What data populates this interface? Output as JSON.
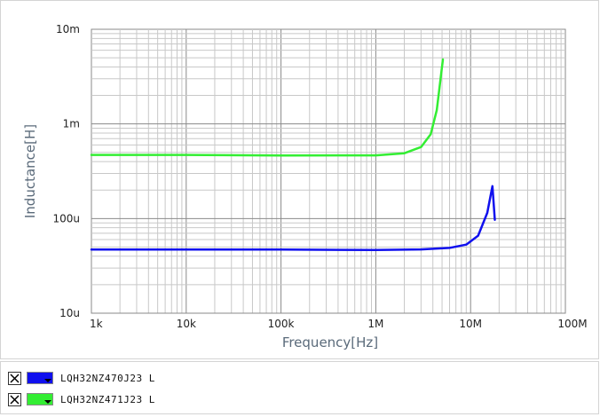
{
  "chart_data": {
    "type": "line",
    "xlabel": "Frequency[Hz]",
    "ylabel": "Inductance[H]",
    "x_scale": "log",
    "y_scale": "log",
    "xlim": [
      1000,
      100000000
    ],
    "ylim": [
      1e-05,
      0.01
    ],
    "x_ticks": [
      {
        "value": 1000,
        "label": "1k"
      },
      {
        "value": 10000,
        "label": "10k"
      },
      {
        "value": 100000,
        "label": "100k"
      },
      {
        "value": 1000000,
        "label": "1M"
      },
      {
        "value": 10000000,
        "label": "10M"
      },
      {
        "value": 100000000,
        "label": "100M"
      }
    ],
    "y_ticks": [
      {
        "value": 0.01,
        "label": "10m"
      },
      {
        "value": 0.001,
        "label": "1m"
      },
      {
        "value": 0.0001,
        "label": "100u"
      },
      {
        "value": 1e-05,
        "label": "10u"
      }
    ],
    "grid": true,
    "legend_position": "bottom",
    "series": [
      {
        "name": "LQH32NZ470J23  L",
        "color": "#1010ee",
        "x": [
          1000,
          10000,
          100000,
          1000000,
          3000000,
          6000000,
          9000000,
          12000000,
          15000000,
          17000000,
          18000000
        ],
        "y": [
          4.7e-05,
          4.7e-05,
          4.7e-05,
          4.65e-05,
          4.72e-05,
          4.9e-05,
          5.3e-05,
          6.6e-05,
          0.000115,
          0.00022,
          9.7e-05
        ]
      },
      {
        "name": "LQH32NZ471J23  L",
        "color": "#33ee33",
        "x": [
          1000,
          10000,
          100000,
          1000000,
          2000000,
          3000000,
          3800000,
          4400000,
          4800000,
          5100000
        ],
        "y": [
          0.00047,
          0.00047,
          0.000463,
          0.000465,
          0.00049,
          0.00057,
          0.00078,
          0.0014,
          0.0029,
          0.0048
        ]
      }
    ]
  },
  "legend": {
    "items": [
      {
        "label": "LQH32NZ470J23  L",
        "color": "#1010ee"
      },
      {
        "label": "LQH32NZ471J23  L",
        "color": "#33ee33"
      }
    ]
  }
}
